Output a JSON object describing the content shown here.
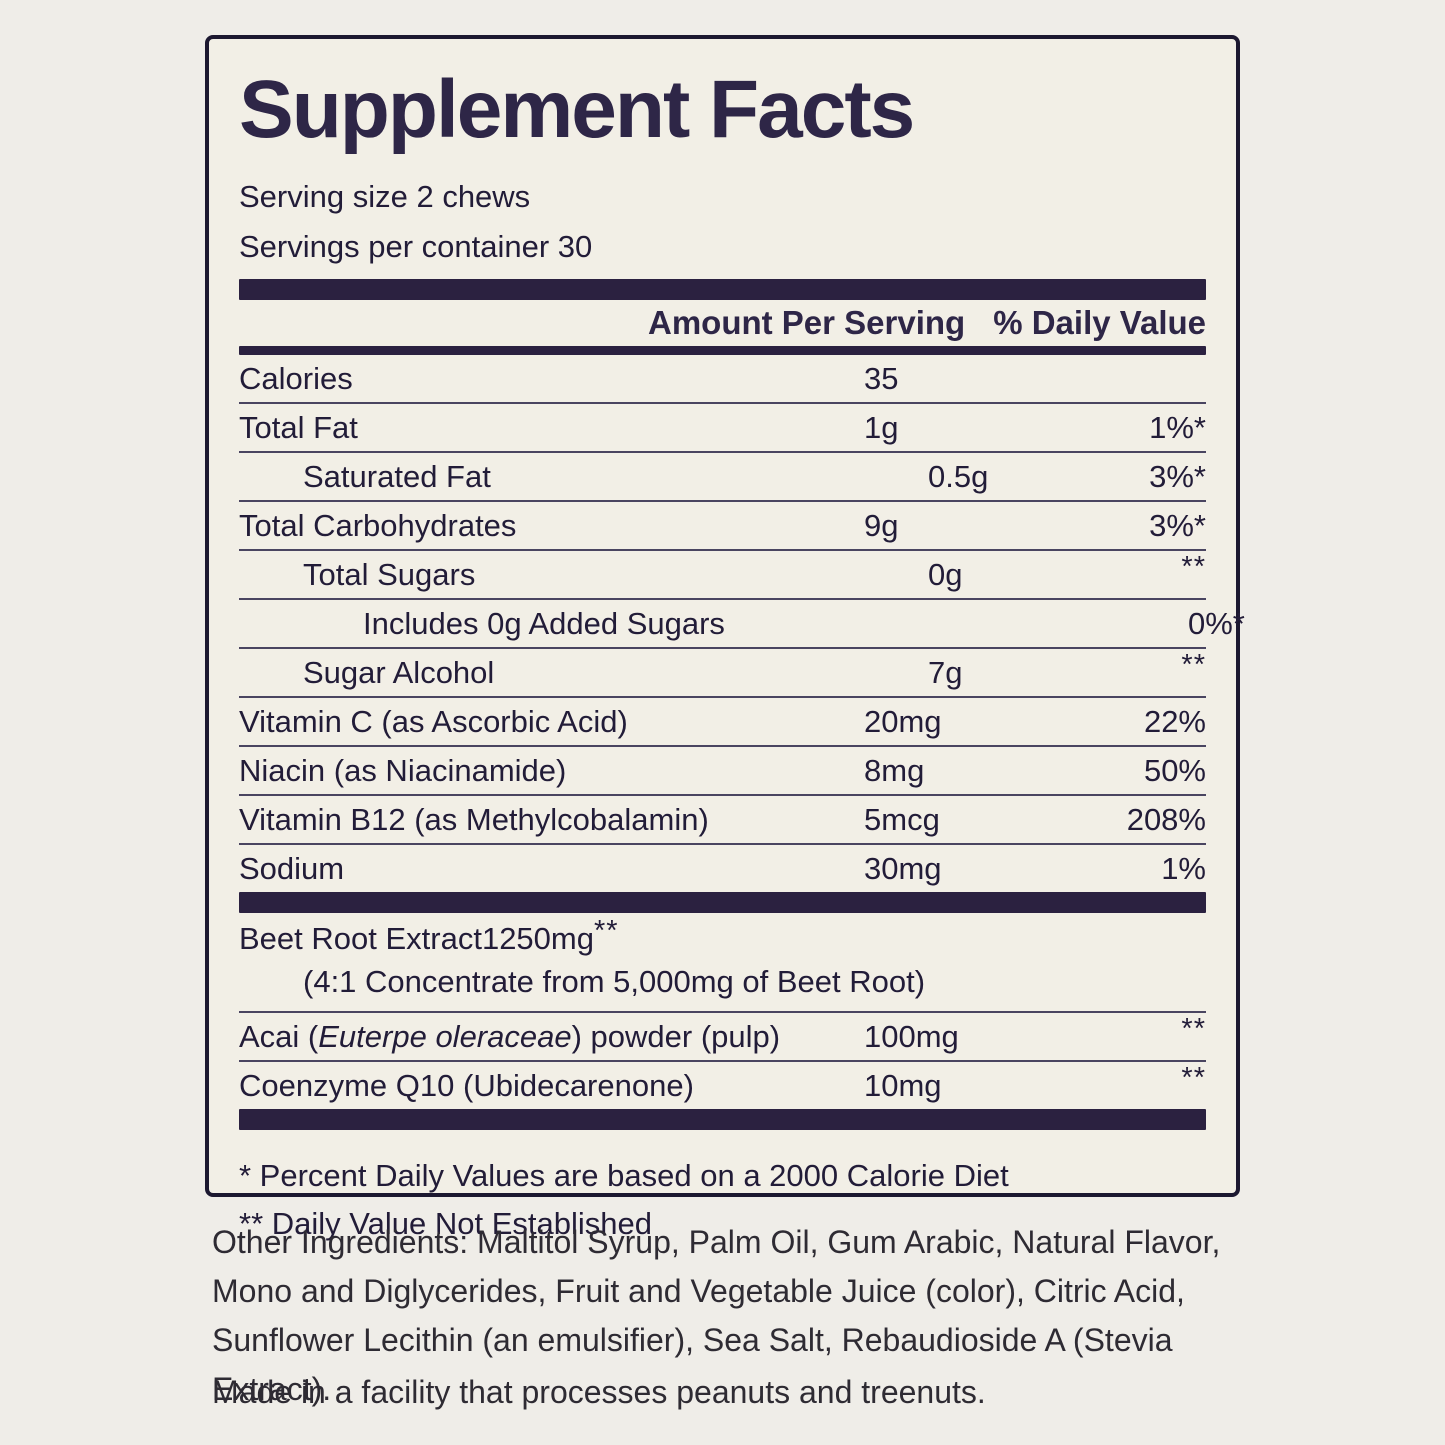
{
  "facts": {
    "title": "Supplement Facts",
    "serving_size": "Serving size 2 chews",
    "servings_per_container": "Servings per container 30",
    "header": {
      "amount_col": "Amount Per Serving",
      "dv_col": "% Daily Value"
    },
    "rows": [
      {
        "name": "Calories",
        "amount": "35",
        "dv": ""
      },
      {
        "name": "Total Fat",
        "amount": "1g",
        "dv": "1%*"
      },
      {
        "name": "Saturated Fat",
        "amount": "0.5g",
        "dv": "3%*"
      },
      {
        "name": "Total Carbohydrates",
        "amount": "9g",
        "dv": "3%*"
      },
      {
        "name": "Total Sugars",
        "amount": "0g",
        "dv": "**"
      },
      {
        "name": "Includes 0g Added Sugars",
        "amount": "",
        "dv": "0%*"
      },
      {
        "name": "Sugar Alcohol",
        "amount": "7g",
        "dv": "**"
      },
      {
        "name": "Vitamin C (as Ascorbic Acid)",
        "amount": "20mg",
        "dv": "22%"
      },
      {
        "name": "Niacin (as Niacinamide)",
        "amount": "8mg",
        "dv": "50%"
      },
      {
        "name": "Vitamin B12 (as Methylcobalamin)",
        "amount": "5mcg",
        "dv": "208%"
      },
      {
        "name": "Sodium",
        "amount": "30mg",
        "dv": "1%"
      }
    ],
    "botanical_rows": [
      {
        "name": "Beet Root Extract",
        "amount": "1250mg",
        "dv": "**",
        "sub_note": "(4:1 Concentrate from 5,000mg of Beet Root)"
      },
      {
        "name_pre": "Acai (",
        "name_italic": "Euterpe oleraceae",
        "name_post": ") powder (pulp)",
        "amount": "100mg",
        "dv": "**"
      },
      {
        "name": "Coenzyme Q10 (Ubidecarenone)",
        "amount": "10mg",
        "dv": "**"
      }
    ],
    "footnotes": {
      "dv_basis": "* Percent Daily Values are based on a 2000 Calorie Diet",
      "dv_not_established": "** Daily Value Not Established"
    }
  },
  "below_label": {
    "other_ingredients": "Other Ingredients: Maltitol Syrup, Palm Oil, Gum Arabic, Natural Flavor, Mono and Diglycerides, Fruit and Vegetable Juice (color), Citric Acid, Sunflower Lecithin (an emulsifier), Sea Salt, Rebaudioside A (Stevia Extract).",
    "allergen_notice": "Made in a facility that processes peanuts and treenuts."
  },
  "colors": {
    "ink": "#221c38",
    "title_ink": "#2e2647",
    "bar": "#2b2140",
    "label_background": "#f2efe6",
    "page_background": "#efede8"
  }
}
